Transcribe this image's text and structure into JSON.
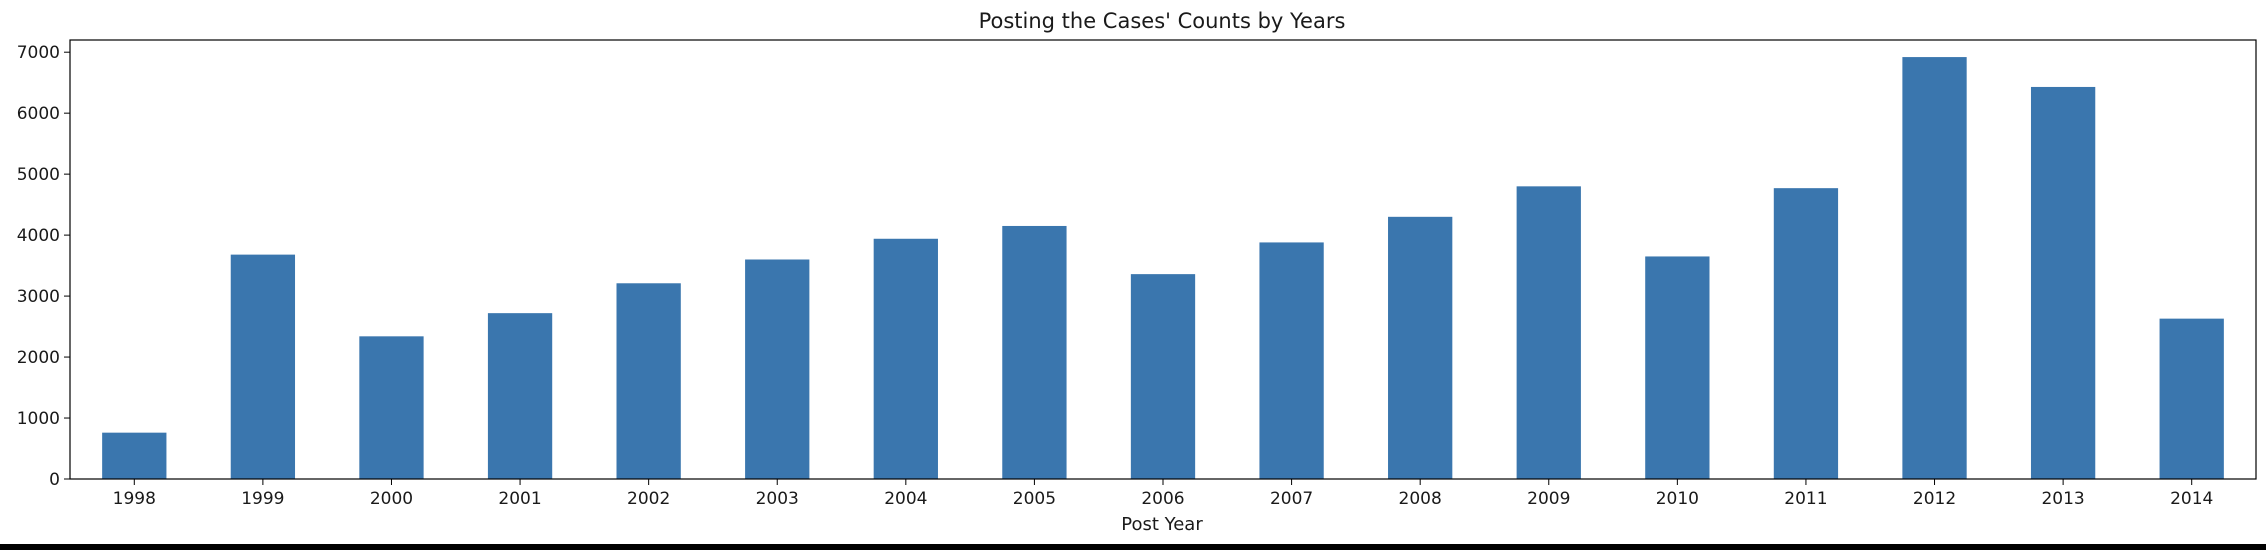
{
  "chart_data": {
    "type": "bar",
    "title": "Posting the Cases' Counts by Years",
    "xlabel": "Post Year",
    "ylabel": "",
    "categories": [
      "1998",
      "1999",
      "2000",
      "2001",
      "2002",
      "2003",
      "2004",
      "2005",
      "2006",
      "2007",
      "2008",
      "2009",
      "2010",
      "2011",
      "2012",
      "2013",
      "2014"
    ],
    "values": [
      760,
      3680,
      2340,
      2720,
      3210,
      3600,
      3940,
      4150,
      3360,
      3880,
      4300,
      4800,
      3650,
      4770,
      6920,
      6430,
      2630
    ],
    "ylim": [
      0,
      7200
    ],
    "yticks": [
      0,
      1000,
      2000,
      3000,
      4000,
      5000,
      6000,
      7000
    ],
    "grid": false,
    "legend": "none",
    "colors": {
      "bar": "#3a76ae",
      "axis": "#000000",
      "text": "#1a1a1a"
    }
  }
}
